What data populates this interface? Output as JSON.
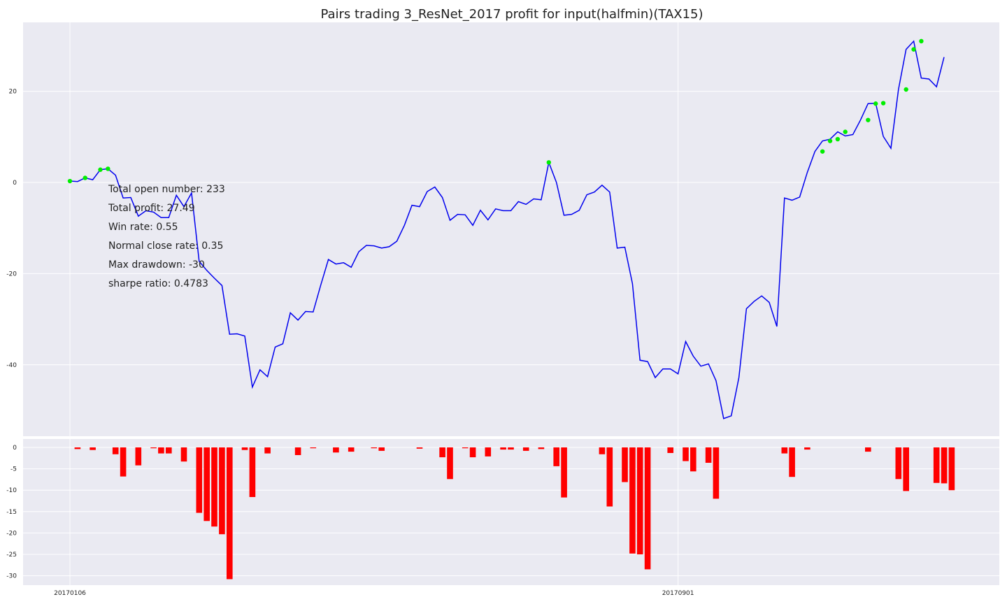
{
  "chart_data": [
    {
      "type": "line",
      "title": "Pairs trading 3_ResNet_2017 profit for input(halfmin)(TAX15)",
      "xlabel": "",
      "ylabel": "",
      "x_tick_labels": [
        "20170106",
        "20170901"
      ],
      "x_tick_index": [
        0,
        80
      ],
      "ylim": [
        -57,
        35
      ],
      "y_ticks": [
        20,
        0,
        -20,
        -40
      ],
      "y_tick_labels": [
        "20",
        "0",
        "-20",
        "-40"
      ],
      "grid": true,
      "legend": "none",
      "series": [
        {
          "color": "#0000ee",
          "values": [
            0.3,
            0.2,
            1.0,
            0.6,
            2.8,
            3.0,
            1.6,
            -3.4,
            -3.3,
            -7.4,
            -6.2,
            -6.5,
            -7.7,
            -7.7,
            -2.8,
            -5.3,
            -2.3,
            -17.3,
            -19.3,
            -21.0,
            -22.6,
            -33.3,
            -33.2,
            -33.7,
            -44.9,
            -41.1,
            -42.6,
            -36.1,
            -35.4,
            -28.6,
            -30.2,
            -28.3,
            -28.4,
            -22.5,
            -16.9,
            -17.9,
            -17.6,
            -18.6,
            -15.2,
            -13.8,
            -13.9,
            -14.4,
            -14.1,
            -12.9,
            -9.4,
            -5.0,
            -5.3,
            -2.0,
            -1.0,
            -3.3,
            -8.3,
            -7.0,
            -7.1,
            -9.4,
            -6.1,
            -8.2,
            -5.8,
            -6.2,
            -6.2,
            -4.2,
            -4.8,
            -3.6,
            -3.8,
            4.4,
            0.0,
            -7.2,
            -7.0,
            -6.1,
            -2.7,
            -2.1,
            -0.6,
            -2.1,
            -14.4,
            -14.2,
            -22.2,
            -39.0,
            -39.3,
            -42.8,
            -40.9,
            -40.9,
            -42.0,
            -34.9,
            -38.1,
            -40.3,
            -39.8,
            -43.5,
            -51.8,
            -51.2,
            -42.8,
            -27.7,
            -26.1,
            -24.9,
            -26.3,
            -31.6,
            -3.4,
            -3.9,
            -3.2,
            2.2,
            6.8,
            9.1,
            9.5,
            11.1,
            10.2,
            10.5,
            13.7,
            17.3,
            17.4,
            10.1,
            7.5,
            20.4,
            29.2,
            31.0,
            22.9,
            22.7,
            21.0,
            27.5
          ]
        }
      ],
      "markers": {
        "color": "#00ee00",
        "points": [
          {
            "x": 0,
            "y": 0.3
          },
          {
            "x": 2,
            "y": 1.0
          },
          {
            "x": 4,
            "y": 2.8
          },
          {
            "x": 5,
            "y": 3.0
          },
          {
            "x": 63,
            "y": 4.4
          },
          {
            "x": 99,
            "y": 6.8
          },
          {
            "x": 100,
            "y": 9.1
          },
          {
            "x": 101,
            "y": 9.5
          },
          {
            "x": 102,
            "y": 11.1
          },
          {
            "x": 105,
            "y": 13.7
          },
          {
            "x": 106,
            "y": 17.3
          },
          {
            "x": 107,
            "y": 17.4
          },
          {
            "x": 110,
            "y": 20.4
          },
          {
            "x": 111,
            "y": 29.2
          },
          {
            "x": 112,
            "y": 31.0
          }
        ]
      },
      "annotations": [
        "Total open number: 233",
        "Total profit: 27.49",
        "Win rate: 0.55",
        "Normal close rate: 0.35",
        "Max drawdown: -30",
        "sharpe ratio: 0.4783"
      ]
    },
    {
      "type": "bar",
      "title": "",
      "xlabel": "",
      "ylabel": "",
      "ylim": [
        -31.5,
        0.5
      ],
      "y_ticks": [
        0,
        -5,
        -10,
        -15,
        -20,
        -25,
        -30
      ],
      "y_tick_labels": [
        "0",
        "-5",
        "-10",
        "-15",
        "-20",
        "-25",
        "-30"
      ],
      "grid": true,
      "color": "#ff0000",
      "series": [
        {
          "values": [
            0,
            -0.4,
            0,
            -0.6,
            0,
            0,
            -1.6,
            -6.8,
            0,
            -4.2,
            0,
            -0.2,
            -1.4,
            -1.4,
            0,
            -3.3,
            0,
            -15.3,
            -17.2,
            -18.5,
            -20.3,
            -30.8,
            0,
            -0.6,
            -11.6,
            0,
            -1.4,
            0,
            0,
            0,
            -1.8,
            0,
            -0.2,
            0,
            0,
            -1.2,
            0,
            -1.0,
            0,
            0,
            -0.2,
            -0.8,
            0,
            0,
            0,
            0,
            -0.3,
            0,
            0,
            -2.3,
            -7.4,
            0,
            -0.2,
            -2.3,
            0,
            -2.1,
            0,
            -0.5,
            -0.5,
            0,
            -0.8,
            0,
            -0.4,
            0,
            -4.4,
            -11.7,
            0,
            0,
            0,
            0,
            -1.6,
            -13.8,
            0,
            -8.1,
            -24.8,
            -25.0,
            -28.5,
            0,
            0,
            -1.3,
            0,
            -3.2,
            -5.6,
            0,
            -3.6,
            -12.0,
            0,
            0,
            0,
            0,
            0,
            0,
            0,
            0,
            -1.4,
            -6.9,
            0,
            -0.5,
            0,
            0,
            0,
            0,
            0,
            0,
            0,
            -1.0,
            0,
            0,
            0,
            -7.4,
            -10.2,
            0,
            0,
            0,
            -8.3,
            -8.4,
            -10.0,
            0
          ]
        }
      ]
    }
  ]
}
